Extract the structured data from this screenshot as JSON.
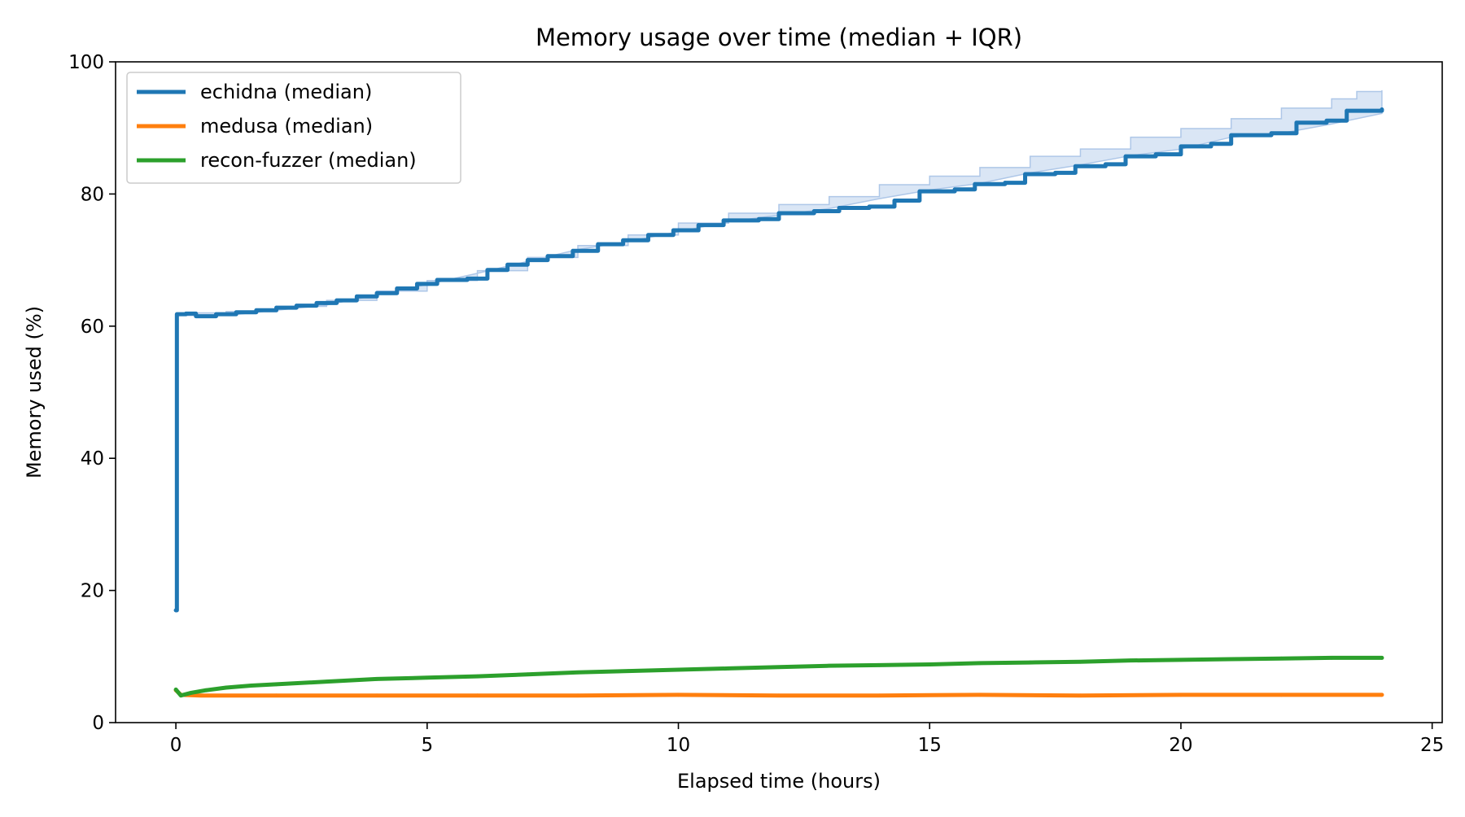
{
  "chart_data": {
    "type": "line",
    "title": "Memory usage over time (median + IQR)",
    "xlabel": "Elapsed time (hours)",
    "ylabel": "Memory used (%)",
    "xlim": [
      -1.2,
      25.2
    ],
    "ylim": [
      0,
      100
    ],
    "x_ticks": [
      0,
      5,
      10,
      15,
      20,
      25
    ],
    "y_ticks": [
      0,
      20,
      40,
      60,
      80,
      100
    ],
    "grid": false,
    "legend_position": "upper-left",
    "series": [
      {
        "name": "echidna (median)",
        "color": "#1f77b4",
        "band_color": "#aec7e8",
        "points": [
          [
            0,
            17
          ],
          [
            0.02,
            61.8
          ],
          [
            0.2,
            61.9
          ],
          [
            0.4,
            61.5
          ],
          [
            0.8,
            61.8
          ],
          [
            1.2,
            62.1
          ],
          [
            1.6,
            62.4
          ],
          [
            2.0,
            62.8
          ],
          [
            2.4,
            63.1
          ],
          [
            2.8,
            63.5
          ],
          [
            3.2,
            63.9
          ],
          [
            3.6,
            64.5
          ],
          [
            4.0,
            65.0
          ],
          [
            4.4,
            65.7
          ],
          [
            4.8,
            66.4
          ],
          [
            5.2,
            67.0
          ],
          [
            5.8,
            67.2
          ],
          [
            6.2,
            68.5
          ],
          [
            6.6,
            69.3
          ],
          [
            7.0,
            70.0
          ],
          [
            7.4,
            70.6
          ],
          [
            7.9,
            71.4
          ],
          [
            8.4,
            72.4
          ],
          [
            8.9,
            73.0
          ],
          [
            9.4,
            73.8
          ],
          [
            9.9,
            74.5
          ],
          [
            10.4,
            75.3
          ],
          [
            10.9,
            76.0
          ],
          [
            11.6,
            76.2
          ],
          [
            12.0,
            77.1
          ],
          [
            12.7,
            77.4
          ],
          [
            13.2,
            77.9
          ],
          [
            13.8,
            78.1
          ],
          [
            14.3,
            79.0
          ],
          [
            14.8,
            80.4
          ],
          [
            15.5,
            80.7
          ],
          [
            15.9,
            81.5
          ],
          [
            16.5,
            81.7
          ],
          [
            16.9,
            83.0
          ],
          [
            17.5,
            83.2
          ],
          [
            17.9,
            84.2
          ],
          [
            18.5,
            84.5
          ],
          [
            18.9,
            85.7
          ],
          [
            19.5,
            86.0
          ],
          [
            20.0,
            87.2
          ],
          [
            20.6,
            87.6
          ],
          [
            21.0,
            88.9
          ],
          [
            21.8,
            89.2
          ],
          [
            22.3,
            90.8
          ],
          [
            22.9,
            91.1
          ],
          [
            23.3,
            92.6
          ],
          [
            24.0,
            92.8
          ]
        ],
        "iqr_upper": [
          [
            0,
            17
          ],
          [
            0.02,
            62.0
          ],
          [
            1.0,
            62.2
          ],
          [
            2.0,
            63.0
          ],
          [
            3.0,
            63.9
          ],
          [
            4.0,
            65.3
          ],
          [
            5.0,
            66.9
          ],
          [
            6.0,
            68.4
          ],
          [
            7.0,
            70.4
          ],
          [
            8.0,
            72.2
          ],
          [
            9.0,
            73.8
          ],
          [
            10.0,
            75.6
          ],
          [
            11.0,
            77.1
          ],
          [
            12.0,
            78.4
          ],
          [
            13.0,
            79.6
          ],
          [
            14.0,
            81.4
          ],
          [
            15.0,
            82.7
          ],
          [
            16.0,
            84.0
          ],
          [
            17.0,
            85.7
          ],
          [
            18.0,
            86.8
          ],
          [
            19.0,
            88.6
          ],
          [
            20.0,
            89.9
          ],
          [
            21.0,
            91.4
          ],
          [
            22.0,
            93.0
          ],
          [
            23.0,
            94.4
          ],
          [
            23.5,
            95.5
          ],
          [
            24.0,
            95.7
          ]
        ],
        "iqr_lower": [
          [
            0,
            17
          ],
          [
            0.02,
            61.6
          ],
          [
            1.0,
            61.6
          ],
          [
            2.0,
            62.4
          ],
          [
            3.0,
            63.2
          ],
          [
            4.0,
            64.7
          ],
          [
            5.0,
            66.3
          ],
          [
            6.0,
            68.0
          ],
          [
            7.0,
            69.8
          ],
          [
            8.0,
            71.6
          ],
          [
            9.0,
            72.8
          ],
          [
            10.0,
            74.3
          ],
          [
            11.0,
            75.8
          ],
          [
            12.0,
            76.8
          ],
          [
            13.0,
            77.8
          ],
          [
            14.0,
            79.3
          ],
          [
            15.0,
            80.6
          ],
          [
            16.0,
            81.6
          ],
          [
            17.0,
            83.2
          ],
          [
            18.0,
            84.4
          ],
          [
            19.0,
            85.8
          ],
          [
            20.0,
            86.8
          ],
          [
            21.0,
            88.6
          ],
          [
            22.0,
            89.2
          ],
          [
            23.0,
            90.6
          ],
          [
            24.0,
            92.2
          ]
        ]
      },
      {
        "name": "medusa (median)",
        "color": "#ff7f0e",
        "points": [
          [
            0,
            4.9
          ],
          [
            0.1,
            4.2
          ],
          [
            0.5,
            4.1
          ],
          [
            2,
            4.1
          ],
          [
            4,
            4.1
          ],
          [
            6,
            4.1
          ],
          [
            8,
            4.1
          ],
          [
            10,
            4.2
          ],
          [
            12,
            4.1
          ],
          [
            14,
            4.1
          ],
          [
            16,
            4.2
          ],
          [
            18,
            4.1
          ],
          [
            20,
            4.2
          ],
          [
            22,
            4.2
          ],
          [
            24,
            4.2
          ]
        ]
      },
      {
        "name": "recon-fuzzer (median)",
        "color": "#2ca02c",
        "points": [
          [
            0,
            5.0
          ],
          [
            0.1,
            4.1
          ],
          [
            0.3,
            4.5
          ],
          [
            0.6,
            4.9
          ],
          [
            1,
            5.3
          ],
          [
            1.5,
            5.6
          ],
          [
            2,
            5.8
          ],
          [
            3,
            6.2
          ],
          [
            4,
            6.6
          ],
          [
            5,
            6.8
          ],
          [
            6,
            7.0
          ],
          [
            7,
            7.3
          ],
          [
            8,
            7.6
          ],
          [
            9,
            7.8
          ],
          [
            10,
            8.0
          ],
          [
            11,
            8.2
          ],
          [
            12,
            8.4
          ],
          [
            13,
            8.6
          ],
          [
            14,
            8.7
          ],
          [
            15,
            8.8
          ],
          [
            16,
            9.0
          ],
          [
            17,
            9.1
          ],
          [
            18,
            9.2
          ],
          [
            19,
            9.4
          ],
          [
            20,
            9.5
          ],
          [
            21,
            9.6
          ],
          [
            22,
            9.7
          ],
          [
            23,
            9.8
          ],
          [
            24,
            9.8
          ]
        ]
      }
    ]
  }
}
